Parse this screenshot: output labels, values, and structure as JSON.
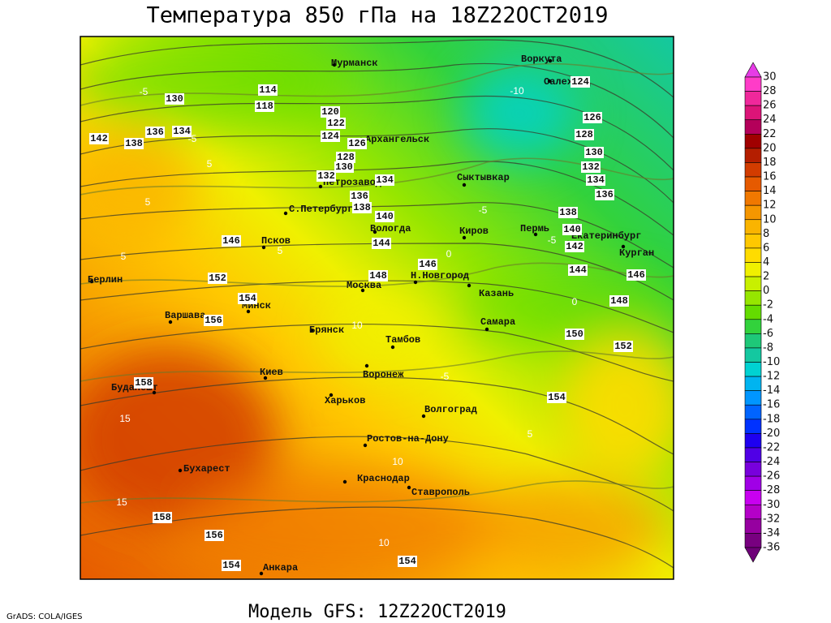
{
  "map": {
    "title": "Температура 850 гПа на 18Z22OCT2019",
    "subtitle": "Модель GFS: 12Z22OCT2019",
    "credit": "GrADS: COLA/IGES",
    "cities": [
      "Мурманск",
      "Воркута",
      "Салехард",
      "Архангельск",
      "Сыктывкар",
      "Петрозаводск",
      "С.Петербург",
      "Вологда",
      "Киров",
      "Пермь",
      "Екатеринбург",
      "Курган",
      "Псков",
      "Берлин",
      "Москва",
      "Н.Новгород",
      "Казань",
      "Варшава",
      "Минск",
      "Самара",
      "Брянск",
      "Тамбов",
      "Киев",
      "Воронеж",
      "Будапешт",
      "Харьков",
      "Волгоград",
      "Ростов-на-Дону",
      "Бухарест",
      "Краснодар",
      "Ставрополь",
      "Анкара"
    ],
    "height_labels": [
      114,
      118,
      130,
      136,
      134,
      142,
      138,
      120,
      122,
      124,
      126,
      128,
      130,
      132,
      134,
      136,
      138,
      140,
      144,
      146,
      146,
      148,
      152,
      154,
      156,
      158,
      158,
      156,
      154,
      154,
      150,
      152,
      154,
      148,
      146,
      144,
      142,
      140,
      138,
      136,
      134,
      132,
      130,
      128,
      126,
      124
    ],
    "temperature_labels": [
      -5,
      -5,
      5,
      5,
      5,
      -10,
      -5,
      -5,
      0,
      0,
      -5,
      10,
      15,
      15,
      10,
      10,
      5,
      5
    ],
    "colorbar": {
      "levels": [
        30,
        28,
        26,
        24,
        22,
        20,
        18,
        16,
        14,
        12,
        10,
        8,
        6,
        4,
        2,
        0,
        -2,
        -4,
        -6,
        -8,
        -10,
        -12,
        -14,
        -16,
        -18,
        -20,
        -22,
        -24,
        -26,
        -28,
        -30,
        -32,
        -34,
        -36
      ],
      "colors": [
        "#e63ce6",
        "#ff3cc8",
        "#f0289b",
        "#dc1478",
        "#b4005a",
        "#a00000",
        "#b41e00",
        "#d23c00",
        "#e65a00",
        "#f07800",
        "#f59600",
        "#fab400",
        "#ffc800",
        "#ffdc00",
        "#f0f000",
        "#c8f000",
        "#96e600",
        "#64dc00",
        "#32d23c",
        "#1ec878",
        "#14c8a0",
        "#00d2d2",
        "#00b4f0",
        "#0096ff",
        "#0064ff",
        "#0032ff",
        "#1e00f0",
        "#5000e6",
        "#7800dc",
        "#a000e6",
        "#c800f0",
        "#b400c8",
        "#9600a0",
        "#780080",
        "#6e0078"
      ]
    }
  }
}
